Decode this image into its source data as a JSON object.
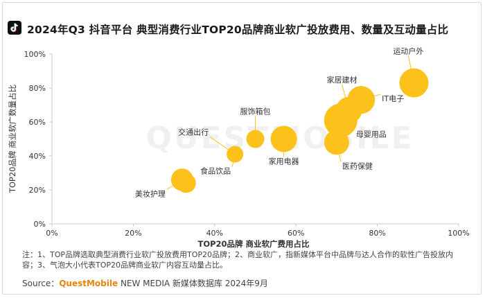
{
  "header": {
    "title": "2024年Q3 抖音平台 典型消费行业TOP20品牌商业软广投放费用、数量及互动量占比",
    "logo_icon": "douyin-logo-icon"
  },
  "watermark": "QUESTMOBILE",
  "note": "注：1、TOP品牌选取典型消费行业软广投放费用TOP20品牌；2、商业软广，指新媒体平台中品牌与达人合作的软性广告投放内容；3、气泡大小代表TOP20品牌商业软广内容互动量占比。",
  "source": {
    "prefix": "Source：",
    "brand": "QuestMobile",
    "suffix": " NEW MEDIA 新媒体数据库 2024年9月"
  },
  "colors": {
    "bubble": "#fcc11b",
    "axis": "#c8c8c8",
    "text": "#333333"
  },
  "chart_data": {
    "type": "scatter",
    "xlabel": "TOP20品牌 商业软广费用占比",
    "ylabel": "TOP20品牌 商业软广数量占比",
    "xlim": [
      0,
      100
    ],
    "ylim": [
      0,
      100
    ],
    "x_ticks": [
      "0%",
      "20%",
      "40%",
      "60%",
      "80%",
      "100%"
    ],
    "y_ticks": [
      "0%",
      "20%",
      "40%",
      "60%",
      "80%",
      "100%"
    ],
    "grid": false,
    "points": [
      {
        "label": "美妆护理",
        "x": 32,
        "y": 26,
        "size": 16
      },
      {
        "label": "",
        "x": 33,
        "y": 24,
        "size": 14
      },
      {
        "label": "交通出行",
        "x": 45,
        "y": 41,
        "size": 12
      },
      {
        "label": "食品饮品",
        "x": 45,
        "y": 41,
        "size": 0
      },
      {
        "label": "服饰箱包",
        "x": 50,
        "y": 50,
        "size": 13
      },
      {
        "label": "家用电器",
        "x": 57,
        "y": 50,
        "size": 19
      },
      {
        "label": "医药保健",
        "x": 70,
        "y": 48,
        "size": 18
      },
      {
        "label": "母婴用品",
        "x": 71,
        "y": 61,
        "size": 24
      },
      {
        "label": "家居建材",
        "x": 73,
        "y": 67,
        "size": 19
      },
      {
        "label": "IT电子",
        "x": 76,
        "y": 73,
        "size": 20
      },
      {
        "label": "运动户外",
        "x": 89,
        "y": 83,
        "size": 21
      }
    ]
  }
}
